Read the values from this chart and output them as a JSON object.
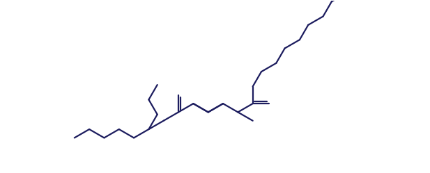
{
  "background": "#ffffff",
  "line_color": "#1c1c5e",
  "line_width": 1.6,
  "figsize": [
    6.17,
    2.49
  ],
  "dpi": 100,
  "xlim": [
    -3.5,
    17.5
  ],
  "ylim": [
    -3.5,
    6.5
  ]
}
